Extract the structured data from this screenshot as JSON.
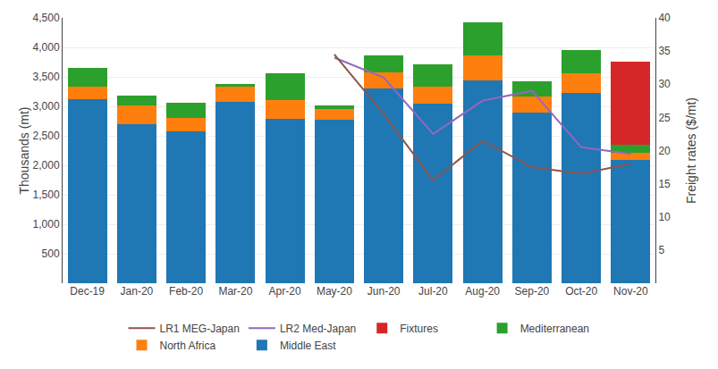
{
  "chart_data": {
    "type": "bar",
    "categories": [
      "Dec-19",
      "Jan-20",
      "Feb-20",
      "Mar-20",
      "Apr-20",
      "May-20",
      "Jun-20",
      "Jul-20",
      "Aug-20",
      "Sep-20",
      "Oct-20",
      "Nov-20"
    ],
    "series": [
      {
        "name": "Middle East",
        "type": "bar",
        "values": [
          3120,
          2700,
          2570,
          3080,
          2790,
          2780,
          3310,
          3050,
          3440,
          2890,
          3220,
          2090
        ]
      },
      {
        "name": "North Africa",
        "type": "bar",
        "values": [
          220,
          320,
          240,
          260,
          310,
          175,
          265,
          280,
          430,
          270,
          340,
          115
        ]
      },
      {
        "name": "Mediterranean",
        "type": "bar",
        "values": [
          310,
          165,
          250,
          40,
          460,
          55,
          290,
          380,
          550,
          270,
          390,
          150
        ]
      },
      {
        "name": "Fixtures",
        "type": "bar",
        "values": [
          0,
          0,
          0,
          0,
          0,
          0,
          0,
          0,
          0,
          0,
          0,
          1400
        ]
      },
      {
        "name": "LR2 Med-Japan",
        "type": "line",
        "axis": "y2",
        "values": [
          null,
          null,
          null,
          null,
          null,
          34.0,
          31.0,
          22.5,
          27.5,
          29.0,
          20.5,
          19.5
        ]
      },
      {
        "name": "LR1 MEG-Japan",
        "type": "line",
        "axis": "y2",
        "values": [
          null,
          null,
          null,
          null,
          null,
          34.5,
          25.5,
          15.5,
          21.5,
          17.5,
          16.5,
          18.0
        ]
      }
    ],
    "stacked": true,
    "ylabel": "Thousands (mt)",
    "ylim": [
      0,
      4500
    ],
    "yticks": [
      500,
      {
        "value": 1000,
        "label": "1,000"
      },
      {
        "value": 1500,
        "label": "1,500"
      },
      {
        "value": 2000,
        "label": "2,000"
      },
      {
        "value": 2500,
        "label": "2,500"
      },
      {
        "value": 3000,
        "label": "3,000"
      },
      {
        "value": 3500,
        "label": "3,500"
      },
      {
        "value": 4000,
        "label": "4,000"
      },
      {
        "value": 4500,
        "label": "4,500"
      }
    ],
    "y2label": "Freight rates ($/mt)",
    "y2lim": [
      0,
      40
    ],
    "y2ticks": [
      5,
      10,
      15,
      20,
      25,
      30,
      35,
      40
    ],
    "grid": true,
    "legend": "bottom"
  }
}
